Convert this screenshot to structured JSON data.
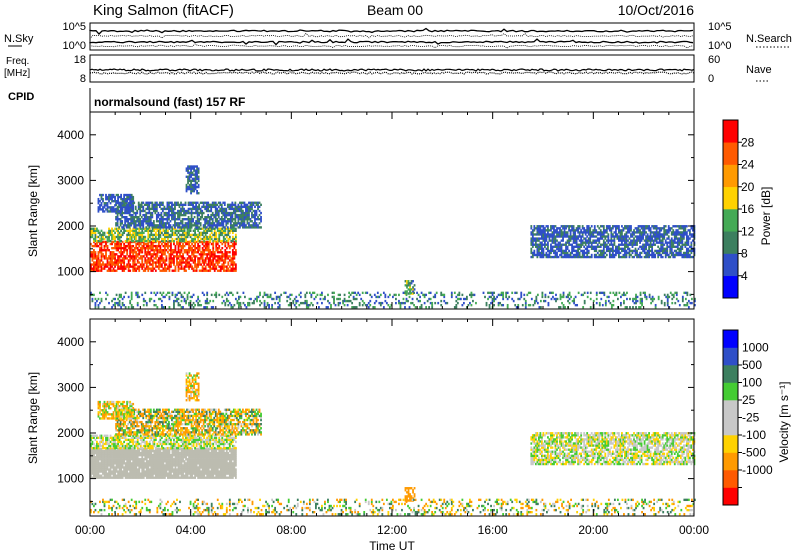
{
  "header": {
    "station": "King Salmon (fitACF)",
    "beam": "Beam 00",
    "date": "10/Oct/2016"
  },
  "aux_panels": {
    "nsky_label": "N.Sky",
    "nsearch_label": "N.Search",
    "nsky_ticks": [
      "10^5",
      "10^0"
    ],
    "nsearch_ticks": [
      "10^5",
      "10^0"
    ],
    "freq_label": "Freq.",
    "freq_unit": "[MHz]",
    "freq_ticks": [
      "18",
      "8"
    ],
    "nave_label": "Nave",
    "nave_ticks": [
      "60",
      "0"
    ],
    "cpid_label": "CPID",
    "cpid_text": "normalsound (fast) 157 RF"
  },
  "colors": {
    "power": [
      "#0000ff",
      "#2f4fc8",
      "#3c7f5f",
      "#44aa55",
      "#ffd200",
      "#ff9a00",
      "#ff5a00",
      "#ff0000"
    ],
    "velocity": [
      "#ff0000",
      "#ff5a00",
      "#ff9a00",
      "#ffd200",
      "#c8c8c8",
      "#c8c8c8",
      "#44cc33",
      "#3c7f5f",
      "#2f4fc8",
      "#0000ff"
    ],
    "ground_scatter": "#bcbcb0"
  },
  "chart_data": [
    {
      "type": "heatmap",
      "name": "power",
      "ylabel": "Slant Range [km]",
      "ylim": [
        180,
        4500
      ],
      "yticks": [
        1000,
        2000,
        3000,
        4000
      ],
      "xlim": [
        0,
        24
      ],
      "xticks": [
        "00:00",
        "04:00",
        "08:00",
        "12:00",
        "16:00",
        "20:00",
        "00:00"
      ],
      "colorbar_label": "Power [dB]",
      "colorbar_ticks": [
        "4",
        "8",
        "12",
        "16",
        "20",
        "24",
        "28"
      ],
      "colorbar_range": [
        0,
        32
      ],
      "regions": [
        {
          "t0": 0.0,
          "t1": 5.8,
          "r0": 1000,
          "r1": 1650,
          "v0": 24,
          "v1": 31
        },
        {
          "t0": 0.0,
          "t1": 5.8,
          "r0": 1650,
          "r1": 1950,
          "v0": 8,
          "v1": 20
        },
        {
          "t0": 1.0,
          "t1": 6.8,
          "r0": 1950,
          "r1": 2500,
          "v0": 4,
          "v1": 12
        },
        {
          "t0": 0.3,
          "t1": 1.7,
          "r0": 2300,
          "r1": 2700,
          "v0": 4,
          "v1": 9
        },
        {
          "t0": 3.8,
          "t1": 4.3,
          "r0": 2700,
          "r1": 3300,
          "v0": 4,
          "v1": 10
        },
        {
          "t0": 17.5,
          "t1": 24.0,
          "r0": 1300,
          "r1": 2000,
          "v0": 4,
          "v1": 10
        },
        {
          "t0": 12.5,
          "t1": 12.9,
          "r0": 500,
          "r1": 800,
          "v0": 6,
          "v1": 18
        },
        {
          "t0": 0.0,
          "t1": 24.0,
          "r0": 200,
          "r1": 520,
          "v0": 4,
          "v1": 16
        }
      ]
    },
    {
      "type": "heatmap",
      "name": "velocity",
      "ylabel": "Slant Range [km]",
      "ylim": [
        180,
        4500
      ],
      "yticks": [
        1000,
        2000,
        3000,
        4000
      ],
      "xlim": [
        0,
        24
      ],
      "xlabel": "Time UT",
      "xticks": [
        "00:00",
        "04:00",
        "08:00",
        "12:00",
        "16:00",
        "20:00",
        "00:00"
      ],
      "colorbar_label": "Velocity [m s⁻¹]",
      "colorbar_ticks": [
        "-1000",
        "-500",
        "-100",
        "-25",
        "25",
        "100",
        "500",
        "1000"
      ],
      "regions": [
        {
          "t0": 0.0,
          "t1": 5.8,
          "r0": 1000,
          "r1": 1650,
          "v0": 0,
          "v1": 0,
          "ground": true
        },
        {
          "t0": 0.0,
          "t1": 5.8,
          "r0": 1650,
          "r1": 1950,
          "v0": -80,
          "v1": 80
        },
        {
          "t0": 1.0,
          "t1": 6.8,
          "r0": 1950,
          "r1": 2500,
          "v0": -300,
          "v1": 200
        },
        {
          "t0": 0.3,
          "t1": 1.7,
          "r0": 2300,
          "r1": 2700,
          "v0": -200,
          "v1": 100
        },
        {
          "t0": 3.8,
          "t1": 4.3,
          "r0": 2700,
          "r1": 3300,
          "v0": -400,
          "v1": 100
        },
        {
          "t0": 17.5,
          "t1": 24.0,
          "r0": 1300,
          "r1": 2000,
          "v0": -60,
          "v1": 60
        },
        {
          "t0": 12.5,
          "t1": 12.9,
          "r0": 500,
          "r1": 800,
          "v0": -500,
          "v1": -150
        },
        {
          "t0": 0.0,
          "t1": 24.0,
          "r0": 200,
          "r1": 520,
          "v0": -200,
          "v1": 200
        }
      ]
    }
  ]
}
